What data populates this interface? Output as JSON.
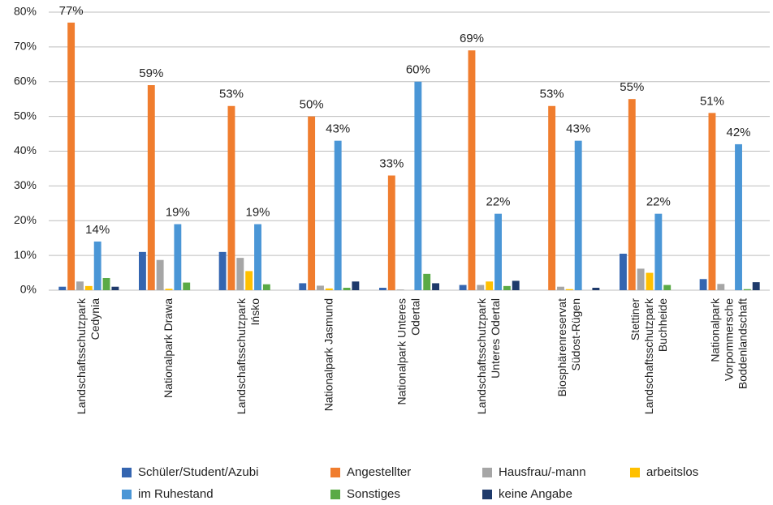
{
  "chart_data": {
    "type": "bar",
    "categories": [
      "Landschaftsschutzpark\nCedynia",
      "Nationalpark Drawa",
      "Landschaftsschutzpark\nIńsko",
      "Nationalpark Jasmund",
      "Nationalpark Unteres\nOdertal",
      "Landschaftsschutzpark\nUnteres Odertal",
      "Biosphärenreservat\nSüdost-Rügen",
      "Stettiner\nLandschaftsschutzpark\nBuchheide",
      "Nationalpark\nVorpommersche\nBoddenlandschaft"
    ],
    "series": [
      {
        "name": "Schüler/Student/Azubi",
        "color": "#3465b0",
        "values": [
          1,
          11,
          11,
          2,
          0.7,
          1.5,
          0,
          10.5,
          3.2
        ]
      },
      {
        "name": "Angestellter",
        "color": "#f07d2e",
        "values": [
          77,
          59,
          53,
          50,
          33,
          69,
          53,
          55,
          51
        ],
        "value_labels": [
          "77%",
          "59%",
          "53%",
          "50%",
          "33%",
          "69%",
          "53%",
          "55%",
          "51%"
        ]
      },
      {
        "name": "Hausfrau/-mann",
        "color": "#a6a6a6",
        "values": [
          2.5,
          8.7,
          9.3,
          1.3,
          0.2,
          1.5,
          1,
          6.2,
          1.8
        ]
      },
      {
        "name": "arbeitslos",
        "color": "#ffc000",
        "values": [
          1.2,
          0.4,
          5.5,
          0.5,
          0,
          2.5,
          0.3,
          5,
          0
        ]
      },
      {
        "name": "im Ruhestand",
        "color": "#4a96d6",
        "values": [
          14,
          19,
          19,
          43,
          60,
          22,
          43,
          22,
          42
        ],
        "value_labels": [
          "14%",
          "19%",
          "19%",
          "43%",
          "60%",
          "22%",
          "43%",
          "22%",
          "42%"
        ]
      },
      {
        "name": "Sonstiges",
        "color": "#5aaa46",
        "values": [
          3.5,
          2.2,
          1.7,
          0.7,
          4.7,
          1.2,
          0,
          1.5,
          0.3
        ]
      },
      {
        "name": "keine Angabe",
        "color": "#1e3a6b",
        "values": [
          1,
          0,
          0,
          2.5,
          2,
          2.7,
          0.7,
          0,
          2.3
        ]
      }
    ],
    "ylim": [
      0,
      80
    ],
    "yticks": [
      {
        "value": 0,
        "label": "0%"
      },
      {
        "value": 10,
        "label": "10%"
      },
      {
        "value": 20,
        "label": "20%"
      },
      {
        "value": 30,
        "label": "30%"
      },
      {
        "value": 40,
        "label": "40%"
      },
      {
        "value": 50,
        "label": "50%"
      },
      {
        "value": 60,
        "label": "60%"
      },
      {
        "value": 70,
        "label": "70%"
      },
      {
        "value": 80,
        "label": "80%"
      }
    ],
    "grid": true
  }
}
